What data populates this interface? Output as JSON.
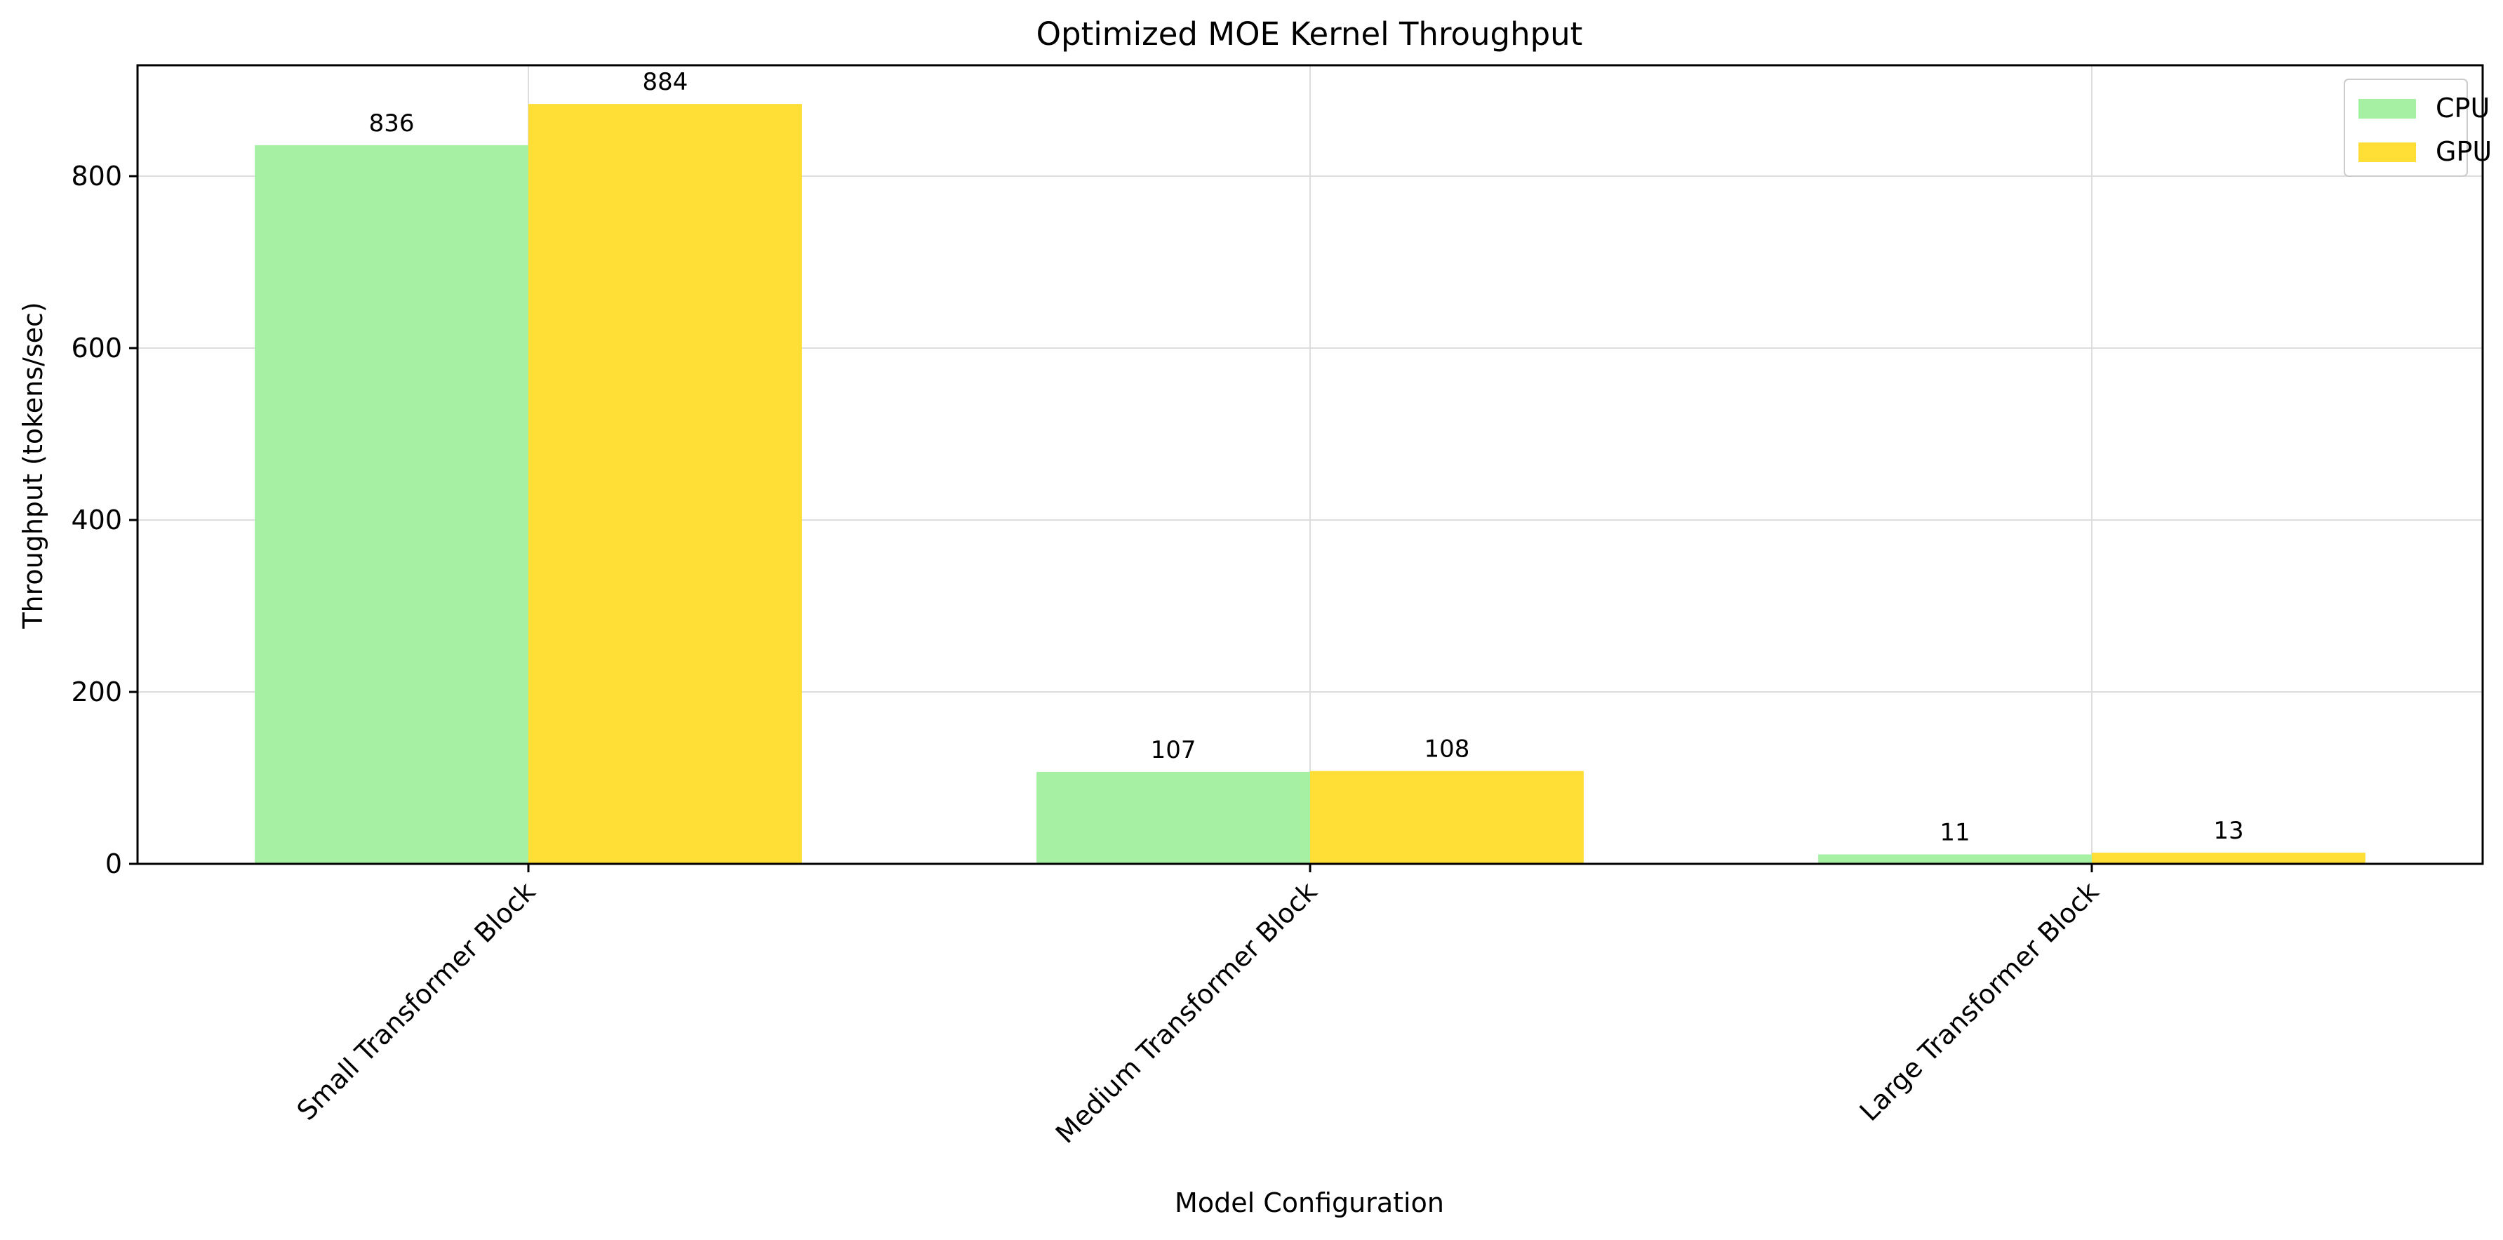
{
  "chart_data": {
    "type": "bar",
    "title": "Optimized MOE Kernel Throughput",
    "xlabel": "Model Configuration",
    "ylabel": "Throughput (tokens/sec)",
    "categories": [
      "Small Transformer Block",
      "Medium Transformer Block",
      "Large Transformer Block"
    ],
    "series": [
      {
        "name": "CPU",
        "values": [
          836,
          107,
          11
        ],
        "color": "#a5f0a3"
      },
      {
        "name": "GPU",
        "values": [
          884,
          108,
          13
        ],
        "color": "#ffdf35"
      }
    ],
    "ylim": [
      0,
      929
    ],
    "yticks": [
      0,
      200,
      400,
      600,
      800
    ],
    "grid": true,
    "legend_position": "top-right",
    "bar_labels": true,
    "xtick_rotation": 45
  }
}
